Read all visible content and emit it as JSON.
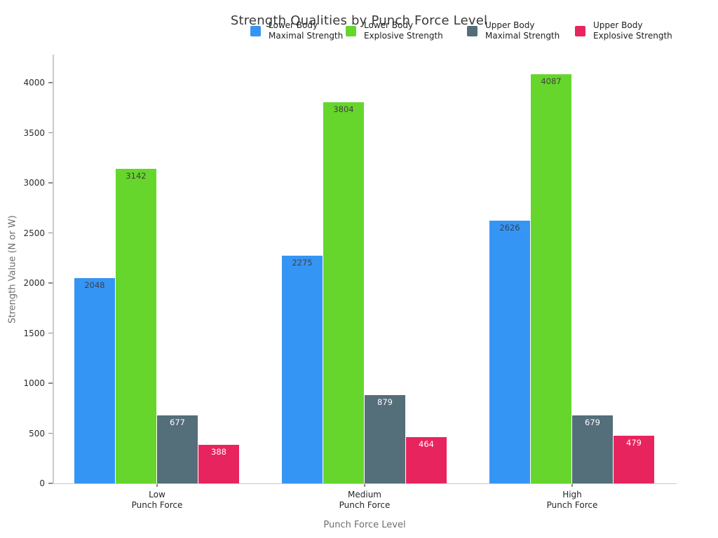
{
  "chart_data": {
    "type": "bar",
    "title": "Strength Qualities by Punch Force Level",
    "xlabel": "Punch Force Level",
    "ylabel": "Strength Value (N or W)",
    "categories": [
      {
        "line1": "Low",
        "line2": "Punch Force"
      },
      {
        "line1": "Medium",
        "line2": "Punch Force"
      },
      {
        "line1": "High",
        "line2": "Punch Force"
      }
    ],
    "series": [
      {
        "name": "Lower Body Maximal Strength",
        "legend_line1": "Lower Body",
        "legend_line2": "Maximal Strength",
        "color": "#3595f5",
        "value_label_color": "#404040",
        "values": [
          2048,
          2275,
          2626
        ]
      },
      {
        "name": "Lower Body Explosive Strength",
        "legend_line1": "Lower Body",
        "legend_line2": "Explosive Strength",
        "color": "#66d62c",
        "value_label_color": "#404040",
        "values": [
          3142,
          3804,
          4087
        ]
      },
      {
        "name": "Upper Body Maximal Strength",
        "legend_line1": "Upper Body",
        "legend_line2": "Maximal Strength",
        "color": "#546e7a",
        "value_label_color": "#ffffff",
        "values": [
          677,
          879,
          679
        ]
      },
      {
        "name": "Upper Body Explosive Strength",
        "legend_line1": "Upper Body",
        "legend_line2": "Explosive Strength",
        "color": "#e8245f",
        "value_label_color": "#ffffff",
        "values": [
          388,
          464,
          479
        ]
      }
    ],
    "yticks": [
      0,
      500,
      1000,
      1500,
      2000,
      2500,
      3000,
      3500,
      4000
    ],
    "ylim": [
      0,
      4280
    ],
    "grid": false,
    "legend_position": "top"
  }
}
